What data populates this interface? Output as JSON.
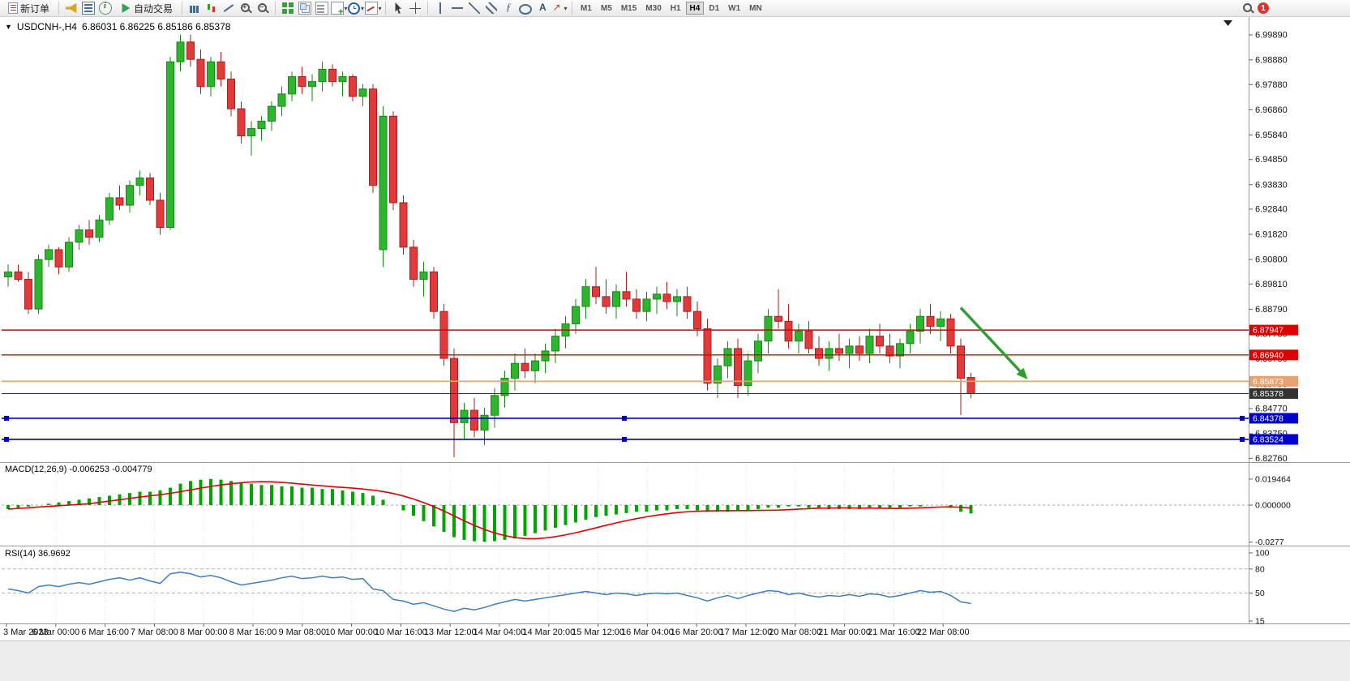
{
  "toolbar": {
    "new_order": {
      "label": "新订单"
    },
    "auto_trading": {
      "label": "自动交易"
    },
    "left_icons": [
      {
        "name": "megaphone"
      },
      {
        "name": "market-watch"
      },
      {
        "name": "data-window"
      }
    ],
    "chart_icons": [
      {
        "name": "bar-chart"
      },
      {
        "name": "candlestick-chart"
      },
      {
        "name": "line-chart"
      },
      {
        "name": "zoom-in"
      },
      {
        "name": "zoom-out"
      }
    ],
    "window_icons": [
      {
        "name": "tile-windows"
      },
      {
        "name": "arrange-windows"
      },
      {
        "name": "cascade-windows"
      },
      {
        "name": "new-chart",
        "dropdown": true
      },
      {
        "name": "period",
        "dropdown": true
      },
      {
        "name": "template",
        "dropdown": true
      }
    ],
    "pointer_icons": [
      {
        "name": "cursor"
      },
      {
        "name": "crosshair"
      }
    ],
    "draw_icons": [
      {
        "name": "vertical-line"
      },
      {
        "name": "horizontal-line"
      },
      {
        "name": "trendline"
      },
      {
        "name": "equidistant-channel"
      },
      {
        "name": "fibonacci"
      },
      {
        "name": "shapes"
      },
      {
        "name": "text"
      },
      {
        "name": "arrows",
        "dropdown": true
      }
    ],
    "timeframes": [
      "M1",
      "M5",
      "M15",
      "M30",
      "H1",
      "H4",
      "D1",
      "W1",
      "MN"
    ],
    "active_timeframe": "H4",
    "notification_count": "1"
  },
  "chart": {
    "collapse_arrow": "▼",
    "symbol_period": "USDCNH-,H4",
    "ohlc_text": "6.86031 6.86225 6.85186 6.85378",
    "colors": {
      "background": "#ffffff",
      "candle_up": "#2db52d",
      "candle_up_border": "#178717",
      "candle_down": "#e23a3a",
      "candle_down_border": "#a81f1f"
    }
  },
  "chart_data": {
    "type": "candlestick",
    "symbol": "USDCNH-",
    "timeframe": "H4",
    "current_ohlc": {
      "open": "6.86031",
      "high": "6.86225",
      "low": "6.85186",
      "close": "6.85378"
    },
    "y_axis_labels": [
      "6.99890",
      "6.98880",
      "6.97880",
      "6.96860",
      "6.95840",
      "6.94850",
      "6.93830",
      "6.92840",
      "6.91820",
      "6.90800",
      "6.89810",
      "6.88790",
      "6.87780",
      "6.86780",
      "6.85760",
      "6.84770",
      "6.83750",
      "6.82760"
    ],
    "x_axis_labels": [
      "3 Mar 2023",
      "6 Mar 00:00",
      "6 Mar 16:00",
      "7 Mar 08:00",
      "8 Mar 00:00",
      "8 Mar 16:00",
      "9 Mar 08:00",
      "10 Mar 00:00",
      "10 Mar 16:00",
      "13 Mar 12:00",
      "14 Mar 04:00",
      "14 Mar 20:00",
      "15 Mar 12:00",
      "16 Mar 04:00",
      "16 Mar 20:00",
      "17 Mar 12:00",
      "20 Mar 08:00",
      "21 Mar 00:00",
      "21 Mar 16:00",
      "22 Mar 08:00"
    ],
    "price_lines": [
      {
        "price": 6.87947,
        "label": "6.87947",
        "color": "#dd0000",
        "width": 1.4,
        "handles": false
      },
      {
        "price": 6.8694,
        "label": "6.86940",
        "color": "#dd0000",
        "width": 1.4,
        "handles": false
      },
      {
        "price": 6.85873,
        "label": "6.85873",
        "color": "#e8a26e",
        "width": 1.6,
        "handles": false
      },
      {
        "price": 6.85378,
        "label": "6.85378",
        "color": "#333333",
        "width": 1.0,
        "handles": false
      },
      {
        "price": 6.84378,
        "label": "6.84378",
        "color": "#0000cc",
        "width": 1.6,
        "handles": true
      },
      {
        "price": 6.83524,
        "label": "6.83524",
        "color": "#0000cc",
        "width": 1.6,
        "handles": true
      }
    ],
    "arrow": {
      "from_bar": 94,
      "from_price": 6.8885,
      "to_bar": 100.6,
      "to_price": 6.8595,
      "color": "#2f9e2f"
    },
    "candles": [
      [
        6.901,
        6.906,
        6.897,
        6.903
      ],
      [
        6.903,
        6.906,
        6.899,
        6.9
      ],
      [
        6.9,
        6.903,
        6.886,
        6.888
      ],
      [
        6.888,
        6.91,
        6.886,
        6.908
      ],
      [
        6.908,
        6.914,
        6.905,
        6.912
      ],
      [
        6.912,
        6.913,
        6.902,
        6.905
      ],
      [
        6.905,
        6.917,
        6.903,
        6.915
      ],
      [
        6.915,
        6.922,
        6.912,
        6.92
      ],
      [
        6.92,
        6.924,
        6.914,
        6.917
      ],
      [
        6.917,
        6.926,
        6.915,
        6.924
      ],
      [
        6.924,
        6.935,
        6.922,
        6.933
      ],
      [
        6.933,
        6.938,
        6.928,
        6.93
      ],
      [
        6.93,
        6.94,
        6.927,
        6.938
      ],
      [
        6.938,
        6.944,
        6.934,
        6.941
      ],
      [
        6.941,
        6.943,
        6.93,
        6.932
      ],
      [
        6.932,
        6.935,
        6.918,
        6.921
      ],
      [
        6.921,
        6.99,
        6.92,
        6.988
      ],
      [
        6.988,
        6.999,
        6.984,
        6.996
      ],
      [
        6.996,
        6.999,
        6.986,
        6.989
      ],
      [
        6.989,
        6.993,
        6.975,
        6.978
      ],
      [
        6.978,
        6.99,
        6.974,
        6.988
      ],
      [
        6.988,
        6.992,
        6.978,
        6.981
      ],
      [
        6.981,
        6.984,
        6.966,
        6.969
      ],
      [
        6.969,
        6.972,
        6.955,
        6.958
      ],
      [
        6.958,
        6.964,
        6.95,
        6.961
      ],
      [
        6.961,
        6.966,
        6.956,
        6.964
      ],
      [
        6.964,
        6.972,
        6.96,
        6.97
      ],
      [
        6.97,
        6.978,
        6.966,
        6.975
      ],
      [
        6.975,
        6.984,
        6.972,
        6.982
      ],
      [
        6.982,
        6.986,
        6.975,
        6.978
      ],
      [
        6.978,
        6.983,
        6.972,
        6.98
      ],
      [
        6.98,
        6.988,
        6.976,
        6.985
      ],
      [
        6.985,
        6.987,
        6.978,
        6.98
      ],
      [
        6.98,
        6.984,
        6.974,
        6.982
      ],
      [
        6.982,
        6.983,
        6.972,
        6.974
      ],
      [
        6.974,
        6.979,
        6.97,
        6.977
      ],
      [
        6.977,
        6.979,
        6.935,
        6.938
      ],
      [
        6.912,
        6.97,
        6.905,
        6.966
      ],
      [
        6.966,
        6.968,
        6.928,
        6.931
      ],
      [
        6.931,
        6.934,
        6.91,
        6.913
      ],
      [
        6.913,
        6.916,
        6.897,
        6.9
      ],
      [
        6.9,
        6.907,
        6.893,
        6.903
      ],
      [
        6.903,
        6.905,
        6.884,
        6.887
      ],
      [
        6.887,
        6.89,
        6.865,
        6.868
      ],
      [
        6.868,
        6.872,
        6.828,
        6.842
      ],
      [
        6.842,
        6.85,
        6.835,
        6.847
      ],
      [
        6.847,
        6.852,
        6.836,
        6.839
      ],
      [
        6.839,
        6.848,
        6.833,
        6.845
      ],
      [
        6.845,
        6.856,
        6.84,
        6.853
      ],
      [
        6.853,
        6.863,
        6.848,
        6.86
      ],
      [
        6.86,
        6.87,
        6.855,
        6.866
      ],
      [
        6.866,
        6.872,
        6.86,
        6.863
      ],
      [
        6.863,
        6.87,
        6.858,
        6.867
      ],
      [
        6.867,
        6.874,
        6.862,
        6.871
      ],
      [
        6.871,
        6.88,
        6.866,
        6.877
      ],
      [
        6.877,
        6.885,
        6.872,
        6.882
      ],
      [
        6.882,
        6.892,
        6.878,
        6.889
      ],
      [
        6.889,
        6.9,
        6.884,
        6.897
      ],
      [
        6.897,
        6.905,
        6.89,
        6.893
      ],
      [
        6.893,
        6.9,
        6.886,
        6.889
      ],
      [
        6.889,
        6.898,
        6.884,
        6.895
      ],
      [
        6.895,
        6.903,
        6.889,
        6.892
      ],
      [
        6.892,
        6.896,
        6.884,
        6.887
      ],
      [
        6.887,
        6.895,
        6.883,
        6.892
      ],
      [
        6.892,
        6.897,
        6.886,
        6.894
      ],
      [
        6.894,
        6.899,
        6.888,
        6.891
      ],
      [
        6.891,
        6.896,
        6.885,
        6.893
      ],
      [
        6.893,
        6.897,
        6.884,
        6.887
      ],
      [
        6.887,
        6.891,
        6.877,
        6.88
      ],
      [
        6.88,
        6.884,
        6.855,
        6.858
      ],
      [
        6.858,
        6.868,
        6.852,
        6.865
      ],
      [
        6.865,
        6.875,
        6.86,
        6.872
      ],
      [
        6.872,
        6.876,
        6.852,
        6.857
      ],
      [
        6.857,
        6.87,
        6.853,
        6.867
      ],
      [
        6.867,
        6.878,
        6.862,
        6.875
      ],
      [
        6.875,
        6.888,
        6.87,
        6.885
      ],
      [
        6.885,
        6.896,
        6.88,
        6.883
      ],
      [
        6.883,
        6.89,
        6.872,
        6.875
      ],
      [
        6.875,
        6.882,
        6.87,
        6.879
      ],
      [
        6.879,
        6.883,
        6.87,
        6.872
      ],
      [
        6.872,
        6.877,
        6.865,
        6.868
      ],
      [
        6.868,
        6.875,
        6.863,
        6.872
      ],
      [
        6.872,
        6.878,
        6.867,
        6.87
      ],
      [
        6.87,
        6.876,
        6.864,
        6.873
      ],
      [
        6.873,
        6.877,
        6.867,
        6.87
      ],
      [
        6.87,
        6.88,
        6.866,
        6.877
      ],
      [
        6.877,
        6.882,
        6.87,
        6.873
      ],
      [
        6.873,
        6.878,
        6.866,
        6.869
      ],
      [
        6.869,
        6.876,
        6.864,
        6.874
      ],
      [
        6.874,
        6.882,
        6.87,
        6.879
      ],
      [
        6.879,
        6.888,
        6.874,
        6.885
      ],
      [
        6.885,
        6.89,
        6.878,
        6.881
      ],
      [
        6.881,
        6.887,
        6.875,
        6.884
      ],
      [
        6.884,
        6.886,
        6.87,
        6.873
      ],
      [
        6.873,
        6.876,
        6.845,
        6.86
      ],
      [
        6.86031,
        6.86225,
        6.85186,
        6.85378
      ]
    ],
    "macd": {
      "title": "MACD(12,26,9) -0.006253 -0.004779",
      "params": "12,26,9",
      "value": "-0.006253",
      "signal": "-0.004779",
      "hist_color": "#00a500",
      "signal_color": "#e00000",
      "axis_labels": [
        {
          "text": "0.019464",
          "value": 0.019464
        },
        {
          "text": "0.000000",
          "value": 0
        },
        {
          "text": "-0.0277",
          "value": -0.0277
        }
      ],
      "histogram": [
        -0.003,
        -0.002,
        -0.001,
        0.0,
        0.001,
        0.002,
        0.003,
        0.004,
        0.005,
        0.006,
        0.007,
        0.008,
        0.009,
        0.01,
        0.01,
        0.011,
        0.013,
        0.016,
        0.018,
        0.019,
        0.0195,
        0.019,
        0.018,
        0.017,
        0.016,
        0.015,
        0.015,
        0.014,
        0.014,
        0.013,
        0.013,
        0.012,
        0.012,
        0.011,
        0.01,
        0.009,
        0.007,
        0.004,
        0.0,
        -0.004,
        -0.008,
        -0.012,
        -0.016,
        -0.02,
        -0.024,
        -0.026,
        -0.027,
        -0.0275,
        -0.027,
        -0.026,
        -0.025,
        -0.023,
        -0.021,
        -0.019,
        -0.017,
        -0.015,
        -0.013,
        -0.011,
        -0.009,
        -0.008,
        -0.007,
        -0.006,
        -0.005,
        -0.005,
        -0.004,
        -0.004,
        -0.003,
        -0.003,
        -0.004,
        -0.005,
        -0.005,
        -0.005,
        -0.004,
        -0.004,
        -0.003,
        -0.002,
        -0.002,
        -0.001,
        -0.001,
        -0.002,
        -0.002,
        -0.003,
        -0.003,
        -0.003,
        -0.003,
        -0.002,
        -0.002,
        -0.002,
        -0.002,
        -0.001,
        -0.001,
        0.0,
        0.0,
        -0.002,
        -0.005,
        -0.006253
      ]
    },
    "rsi": {
      "title": "RSI(14) 36.9692",
      "period": "14",
      "value": "36.9692",
      "line_color": "#3f7fbf",
      "levels": [
        80,
        50
      ],
      "axis_labels": [
        {
          "text": "100",
          "value": 100
        },
        {
          "text": "80",
          "value": 80
        },
        {
          "text": "50",
          "value": 50
        },
        {
          "text": "15",
          "value": 15
        }
      ],
      "series": [
        55,
        53,
        50,
        58,
        60,
        58,
        61,
        63,
        61,
        64,
        67,
        69,
        66,
        69,
        65,
        62,
        74,
        76,
        74,
        70,
        72,
        69,
        64,
        60,
        62,
        64,
        66,
        69,
        71,
        68,
        69,
        71,
        69,
        70,
        67,
        68,
        55,
        53,
        42,
        40,
        36,
        38,
        34,
        30,
        27,
        31,
        29,
        32,
        36,
        39,
        42,
        40,
        42,
        44,
        46,
        48,
        50,
        52,
        50,
        48,
        50,
        49,
        47,
        49,
        50,
        49,
        50,
        47,
        44,
        40,
        44,
        47,
        43,
        47,
        50,
        53,
        52,
        48,
        50,
        47,
        45,
        47,
        46,
        48,
        46,
        49,
        48,
        45,
        47,
        50,
        53,
        51,
        52,
        47,
        39,
        36.97
      ]
    }
  }
}
